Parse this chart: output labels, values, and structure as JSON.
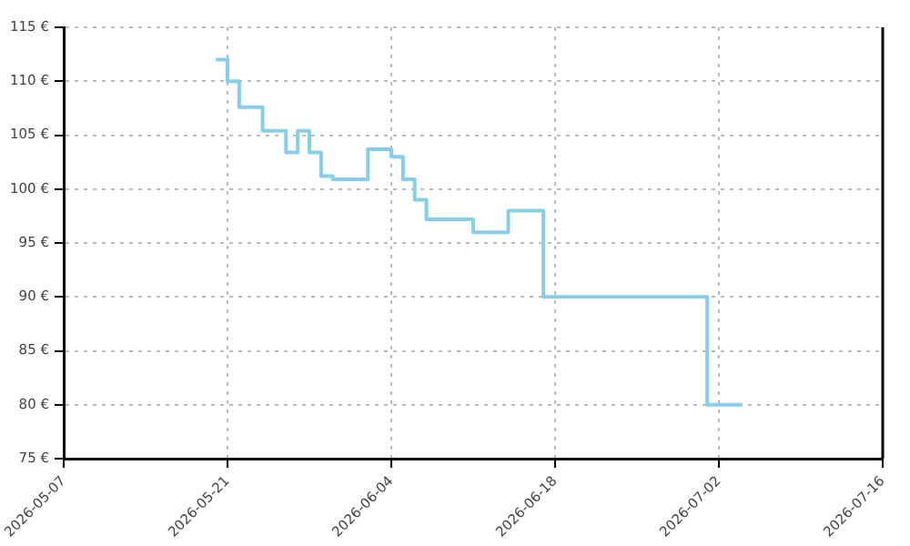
{
  "chart_data": {
    "type": "step",
    "x": [
      "2026-05-20",
      "2026-05-21",
      "2026-05-22",
      "2026-05-24",
      "2026-05-26",
      "2026-05-27",
      "2026-05-28",
      "2026-05-29",
      "2026-05-30",
      "2026-06-02",
      "2026-06-04",
      "2026-06-05",
      "2026-06-06",
      "2026-06-07",
      "2026-06-11",
      "2026-06-14",
      "2026-06-17",
      "2026-07-01",
      "2026-07-04"
    ],
    "series": [
      {
        "color": "#87ceeb",
        "values": [
          112,
          110,
          107.6,
          105.4,
          103.4,
          105.4,
          103.4,
          101.2,
          100.9,
          103.7,
          103,
          100.9,
          99,
          97.2,
          96,
          98,
          90,
          80,
          80
        ]
      }
    ],
    "xlim": [
      "2026-05-07",
      "2026-07-16"
    ],
    "xticks": [
      "2026-05-07",
      "2026-05-21",
      "2026-06-04",
      "2026-06-18",
      "2026-07-02",
      "2026-07-16"
    ],
    "ylim": [
      75,
      115
    ],
    "yticks": [
      {
        "value": 75,
        "label": "75 €"
      },
      {
        "value": 80,
        "label": "80 €"
      },
      {
        "value": 85,
        "label": "85 €"
      },
      {
        "value": 90,
        "label": "90 €"
      },
      {
        "value": 95,
        "label": "95 €"
      },
      {
        "value": 100,
        "label": "100 €"
      },
      {
        "value": 105,
        "label": "105 €"
      },
      {
        "value": 110,
        "label": "110 €"
      },
      {
        "value": 115,
        "label": "115 €"
      }
    ],
    "grid": true,
    "legend": false
  }
}
